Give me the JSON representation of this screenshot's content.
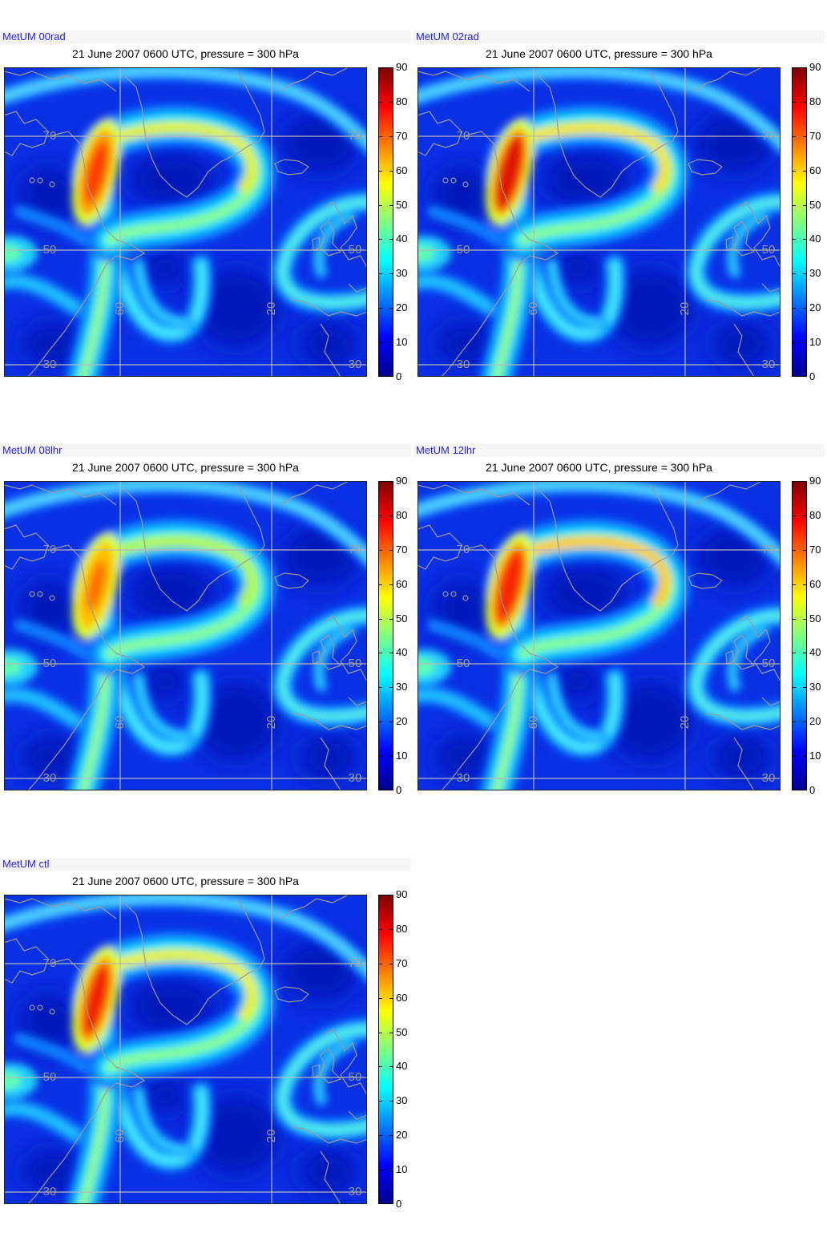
{
  "panels": [
    {
      "label": "MetUM 00rad",
      "title": "21 June 2007 0600 UTC, pressure = 300 hPa"
    },
    {
      "label": "MetUM 02rad",
      "title": "21 June 2007 0600 UTC, pressure = 300 hPa"
    },
    {
      "label": "MetUM 08lhr",
      "title": "21 June 2007 0600 UTC, pressure = 300 hPa"
    },
    {
      "label": "MetUM 12lhr",
      "title": "21 June 2007 0600 UTC, pressure = 300 hPa"
    },
    {
      "label": "MetUM ctl",
      "title": "21 June 2007 0600 UTC, pressure = 300 hPa"
    }
  ],
  "map": {
    "lat_labels": [
      "70",
      "50",
      "30"
    ],
    "lon_labels": [
      "60",
      "20"
    ]
  },
  "colorbar": {
    "min": 0,
    "max": 90,
    "ticks": [
      0,
      10,
      20,
      30,
      40,
      50,
      60,
      70,
      80,
      90
    ],
    "colormap": [
      "#00008f",
      "#0000ff",
      "#0080ff",
      "#00ffff",
      "#80ff80",
      "#ffff00",
      "#ff8000",
      "#ff0000",
      "#800000"
    ]
  },
  "colors": {
    "label_text": "#1c1cff",
    "map_background": "#0a30e6",
    "low_speed": "#0012b8",
    "coastline": "#9a9a9a",
    "grid": "#b8b8b8",
    "grid_label": "#9c9c9c"
  }
}
